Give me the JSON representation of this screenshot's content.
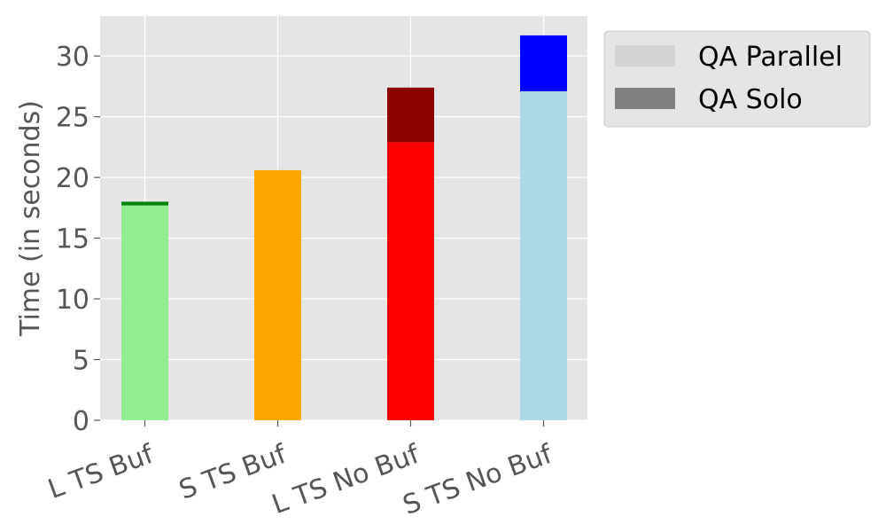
{
  "chart_data": {
    "type": "bar",
    "stacked": true,
    "categories": [
      "L TS Buf",
      "S TS Buf",
      "L TS No Buf",
      "S TS No Buf"
    ],
    "series": [
      {
        "name": "QA Parallel",
        "legend_color": "#d3d3d3",
        "values": [
          17.7,
          20.6,
          22.9,
          27.1
        ],
        "colors": [
          "#90ee90",
          "#ffa500",
          "#ff0000",
          "#add8e6"
        ]
      },
      {
        "name": "QA Solo",
        "legend_color": "#808080",
        "values": [
          0.3,
          0.0,
          4.5,
          4.6
        ],
        "colors": [
          "#008000",
          "#ffa500",
          "#8b0000",
          "#0000ff"
        ]
      }
    ],
    "title": "",
    "xlabel": "",
    "ylabel": "Time (in seconds)",
    "ylim": [
      0,
      33.3
    ],
    "yticks": [
      0,
      5,
      10,
      15,
      20,
      25,
      30
    ],
    "grid": true,
    "legend_position": "outside-top-right",
    "plot_background": "#e5e5e5",
    "grid_color": "#ffffff"
  }
}
